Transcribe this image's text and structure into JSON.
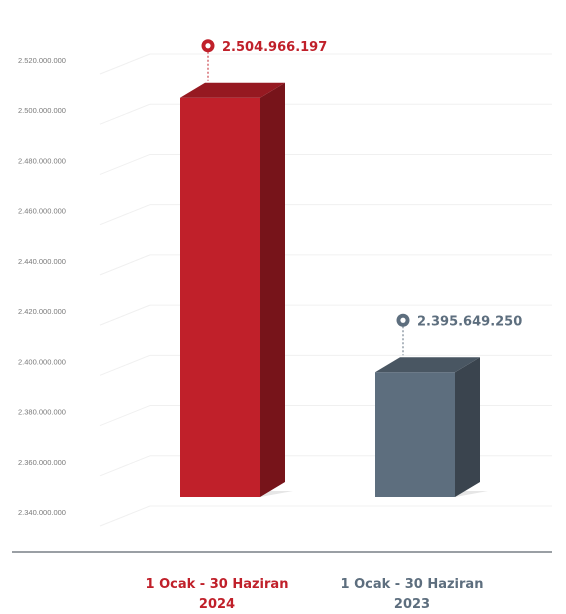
{
  "chart_data": {
    "type": "bar",
    "categories": [
      "1 Ocak - 30 Haziran\n2024",
      "1 Ocak - 30 Haziran\n2023"
    ],
    "values": [
      2504966197,
      2395649250
    ],
    "value_labels": [
      "2.504.966.197",
      "2.395.649.250"
    ],
    "colors": [
      "#c0202a",
      "#5d6e7e"
    ],
    "yticks": [
      "2.340.000.000",
      "2.360.000.000",
      "2.380.000.000",
      "2.400.000.000",
      "2.420.000.000",
      "2.440.000.000",
      "2.460.000.000",
      "2.480.000.000",
      "2.500.000.000",
      "2.520.000.000"
    ],
    "ylim": [
      2340000000,
      2520000000
    ],
    "grid": true,
    "title": "",
    "xlabel": "",
    "ylabel": ""
  }
}
